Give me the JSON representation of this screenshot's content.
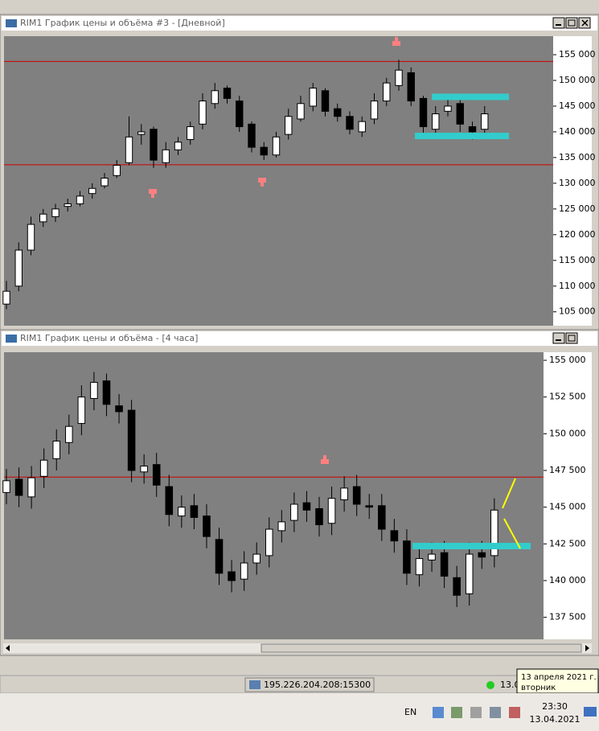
{
  "chart_data": [
    {
      "type": "candlestick",
      "title": "RIM1 График цены и объёма #3 - [Дневной]",
      "open": [
        106500,
        110000,
        117000,
        122500,
        123500,
        125500,
        126000,
        128000,
        129500,
        131500,
        134000,
        139500,
        140500,
        134000,
        136500,
        138500,
        141500,
        145500,
        148500,
        146000,
        141500,
        137000,
        135500,
        139500,
        142500,
        145000,
        148000,
        144500,
        143000,
        140000,
        142500,
        146000,
        149000,
        151500,
        146500,
        140500,
        144000,
        145500,
        141000,
        140500
      ],
      "high": [
        111000,
        118500,
        123500,
        125000,
        126000,
        127000,
        128500,
        130000,
        132000,
        134500,
        143000,
        141500,
        141000,
        138000,
        139000,
        142000,
        147500,
        149500,
        149000,
        147000,
        142000,
        138000,
        140000,
        144500,
        147000,
        149500,
        148500,
        145500,
        144000,
        143000,
        147500,
        150500,
        154000,
        152500,
        147000,
        145000,
        146500,
        146500,
        142000,
        145000
      ],
      "low": [
        105500,
        109000,
        116000,
        121500,
        122500,
        124500,
        125500,
        127000,
        129000,
        131000,
        133500,
        137500,
        133000,
        133000,
        135500,
        137500,
        140500,
        144500,
        145500,
        140000,
        136000,
        134500,
        135000,
        138500,
        142000,
        144000,
        143000,
        142000,
        139500,
        139000,
        141500,
        145000,
        148000,
        145000,
        139500,
        139500,
        143000,
        140000,
        138500,
        139500
      ],
      "close": [
        109000,
        117000,
        122000,
        124000,
        125000,
        126000,
        127500,
        129000,
        131000,
        133500,
        139000,
        140000,
        134500,
        136500,
        138000,
        141000,
        146000,
        148000,
        146500,
        141000,
        137000,
        135500,
        139000,
        143000,
        145500,
        148500,
        144000,
        143000,
        140500,
        142000,
        146000,
        149500,
        152000,
        146000,
        141000,
        143500,
        145000,
        141500,
        140000,
        143500
      ],
      "up_color": "#ffffff",
      "down_color": "#000000",
      "ylim": [
        102300,
        158600
      ],
      "yticks": [
        {
          "value": 155000,
          "label": "155 000"
        },
        {
          "value": 150000,
          "label": "150 000"
        },
        {
          "value": 145000,
          "label": "145 000"
        },
        {
          "value": 140000,
          "label": "140 000"
        },
        {
          "value": 135000,
          "label": "135 000"
        },
        {
          "value": 130000,
          "label": "130 000"
        },
        {
          "value": 125000,
          "label": "125 000"
        },
        {
          "value": 120000,
          "label": "120 000"
        },
        {
          "value": 115000,
          "label": "115 000"
        },
        {
          "value": 110000,
          "label": "110 000"
        },
        {
          "value": 105000,
          "label": "105 000"
        }
      ],
      "lines": [
        {
          "value": 153700,
          "color": "#cc0000"
        },
        {
          "value": 133600,
          "color": "#cc0000"
        }
      ],
      "zones": [
        {
          "value": 146800,
          "color": "#33cccc"
        },
        {
          "value": 139200,
          "color": "#33cccc"
        }
      ]
    },
    {
      "type": "candlestick",
      "title": "RIM1 График цены и объёма - [4 часа]",
      "open": [
        146000,
        146900,
        145700,
        147100,
        148300,
        149400,
        150700,
        152400,
        153600,
        151900,
        151600,
        147400,
        147900,
        146400,
        144400,
        145100,
        144400,
        142800,
        140600,
        140100,
        141200,
        141700,
        143400,
        144100,
        145300,
        144900,
        143900,
        145500,
        146400,
        145100,
        145100,
        143400,
        142700,
        140400,
        141400,
        141900,
        140200,
        139100,
        141900,
        141700
      ],
      "high": [
        147600,
        147700,
        147800,
        149000,
        150300,
        151300,
        153300,
        154200,
        154100,
        152700,
        152300,
        148600,
        148700,
        147200,
        145800,
        145900,
        145200,
        143600,
        141400,
        142000,
        142600,
        144300,
        144800,
        146000,
        146100,
        145700,
        146400,
        147100,
        147200,
        145900,
        145900,
        144200,
        143500,
        142300,
        142600,
        142700,
        141000,
        142600,
        142700,
        145600
      ],
      "low": [
        145200,
        145000,
        144900,
        146300,
        147500,
        148600,
        149900,
        151600,
        151200,
        150700,
        146700,
        146600,
        145700,
        143700,
        143600,
        143500,
        142200,
        139700,
        139200,
        139300,
        140400,
        140900,
        142600,
        143300,
        144000,
        143000,
        143100,
        144700,
        144400,
        144200,
        142700,
        141900,
        139700,
        139600,
        140600,
        139500,
        138200,
        138300,
        140800,
        140900
      ],
      "close": [
        146800,
        145800,
        147000,
        148200,
        149500,
        150500,
        152500,
        153500,
        152000,
        151500,
        147500,
        147800,
        146500,
        144500,
        145000,
        144300,
        143000,
        140500,
        140000,
        141200,
        141800,
        143500,
        144000,
        145200,
        144800,
        143800,
        145600,
        146300,
        145200,
        145000,
        143500,
        142700,
        140500,
        141500,
        141800,
        140300,
        139000,
        141800,
        141600,
        144800
      ],
      "up_color": "#ffffff",
      "down_color": "#000000",
      "ylim": [
        136000,
        155550
      ],
      "yticks": [
        {
          "value": 155000,
          "label": "155 000"
        },
        {
          "value": 152500,
          "label": "152 500"
        },
        {
          "value": 150000,
          "label": "150 000"
        },
        {
          "value": 147500,
          "label": "147 500"
        },
        {
          "value": 145000,
          "label": "145 000"
        },
        {
          "value": 142500,
          "label": "142 500"
        },
        {
          "value": 140000,
          "label": "140 000"
        },
        {
          "value": 137500,
          "label": "137 500"
        }
      ],
      "lines": [
        {
          "value": 147050,
          "color": "#cc0000"
        }
      ],
      "zones": [
        {
          "value": 142350,
          "color": "#33cccc"
        }
      ]
    }
  ],
  "status_bar": {
    "server": "195.226.204.208:15300",
    "time_fragment": "13.0"
  },
  "tooltip": {
    "date": "13 апреля 2021 г.",
    "weekday": "вторник"
  },
  "taskbar": {
    "language": "EN",
    "time": "23:30",
    "date": "13.04.2021"
  }
}
